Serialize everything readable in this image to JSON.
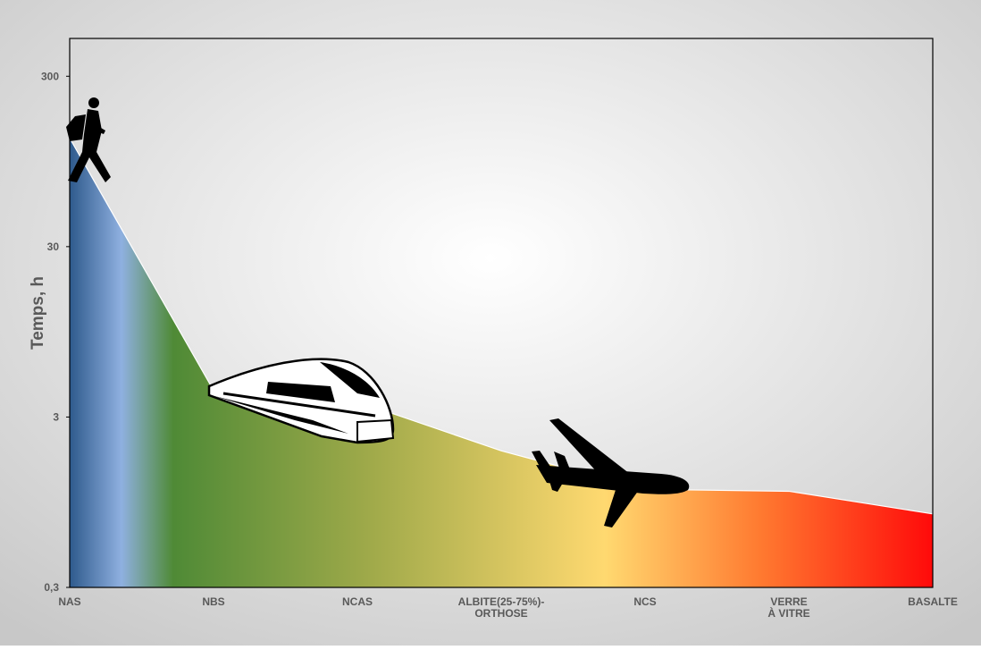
{
  "chart_data": {
    "type": "area",
    "y_label": "Temps, h",
    "categories": [
      "NAS",
      "NBS",
      "NCAS",
      "ALBITE(25-75%)-\nORTHOSE",
      "NCS",
      "VERRE\nÀ VITRE",
      "BASALTE"
    ],
    "values": [
      130,
      4.3,
      3.7,
      1.9,
      1.13,
      1.1,
      0.81
    ],
    "log_scale": true,
    "ylim": [
      0.3,
      500
    ],
    "yticks": [
      {
        "value": 0.3,
        "label": "0,3"
      },
      3,
      30,
      300
    ],
    "gradient": [
      "#2e5a8c",
      "#8fb0e0",
      "#4f8a36",
      "#a0aa4a",
      "#ffd970",
      "#ff7a30",
      "#ff0a0a"
    ]
  }
}
